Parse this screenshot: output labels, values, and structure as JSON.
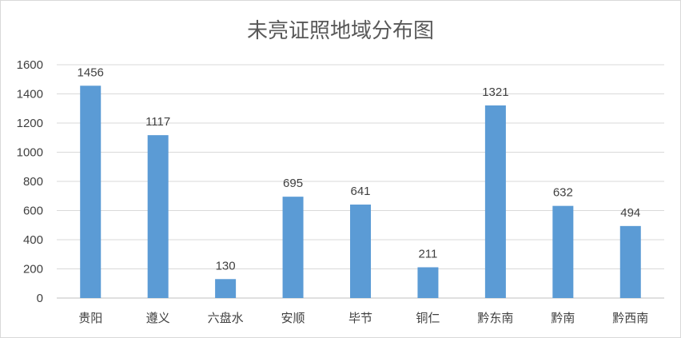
{
  "chart_data": {
    "type": "bar",
    "title": "未亮证照地域分布图",
    "categories": [
      "贵阳",
      "遵义",
      "六盘水",
      "安顺",
      "毕节",
      "铜仁",
      "黔东南",
      "黔南",
      "黔西南"
    ],
    "values": [
      1456,
      1117,
      130,
      695,
      641,
      211,
      1321,
      632,
      494
    ],
    "ylim": [
      0,
      1600
    ],
    "yticks": [
      0,
      200,
      400,
      600,
      800,
      1000,
      1200,
      1400,
      1600
    ],
    "grid": true,
    "bar_color": "#5b9bd5",
    "data_labels": true
  }
}
